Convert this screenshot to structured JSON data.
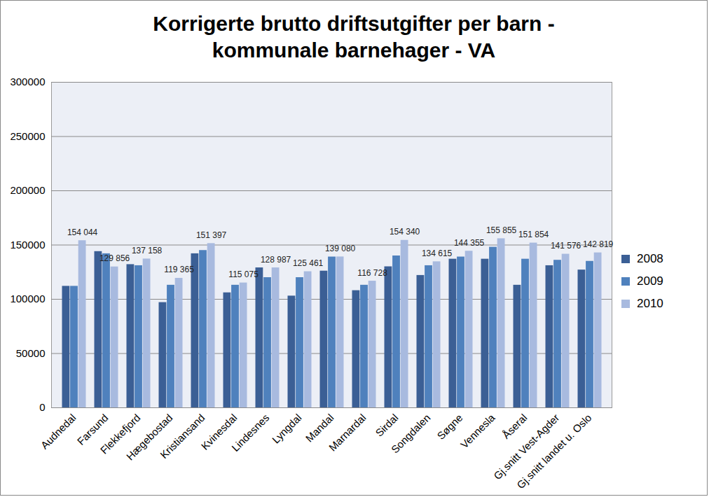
{
  "chart_data": {
    "type": "bar",
    "title": "Korrigerte brutto driftsutgifter per barn - kommunale barnehager - VA",
    "categories": [
      "Audnedal",
      "Farsund",
      "Flekkefjord",
      "Hægebostad",
      "Kristiansand",
      "Kvinesdal",
      "Lindesnes",
      "Lyngdal",
      "Mandal",
      "Marnardal",
      "Sirdal",
      "Songdalen",
      "Søgne",
      "Vennesla",
      "Åseral",
      "Gj.snitt Vest-Agder",
      "Gj.snitt landet u. Oslo"
    ],
    "series": [
      {
        "name": "2008",
        "color": "#3b5f95",
        "values": [
          112000,
          144000,
          132000,
          97000,
          142000,
          106000,
          129000,
          103000,
          126000,
          108000,
          130000,
          122000,
          137000,
          137000,
          113000,
          131000,
          127000
        ]
      },
      {
        "name": "2009",
        "color": "#4f81bd",
        "values": [
          112000,
          142000,
          131000,
          113000,
          145000,
          113000,
          120000,
          120000,
          139000,
          113000,
          140000,
          131000,
          139000,
          148000,
          137000,
          136000,
          135000
        ]
      },
      {
        "name": "2010",
        "color": "#a8badf",
        "values": [
          154044,
          129856,
          137158,
          119365,
          151397,
          115075,
          128987,
          125461,
          139080,
          116728,
          154340,
          134615,
          144355,
          155855,
          151854,
          141576,
          142819
        ],
        "data_labels": true,
        "value_labels": [
          "154 044",
          "129 856",
          "137 158",
          "119 365",
          "151 397",
          "115 075",
          "128 987",
          "125 461",
          "139 080",
          "116 728",
          "154 340",
          "134 615",
          "144 355",
          "155 855",
          "151 854",
          "141 576",
          "142 819"
        ]
      }
    ],
    "ylim": [
      0,
      300000
    ],
    "yticks": [
      0,
      50000,
      100000,
      150000,
      200000,
      250000,
      300000
    ],
    "grid": true,
    "legend": "right"
  }
}
